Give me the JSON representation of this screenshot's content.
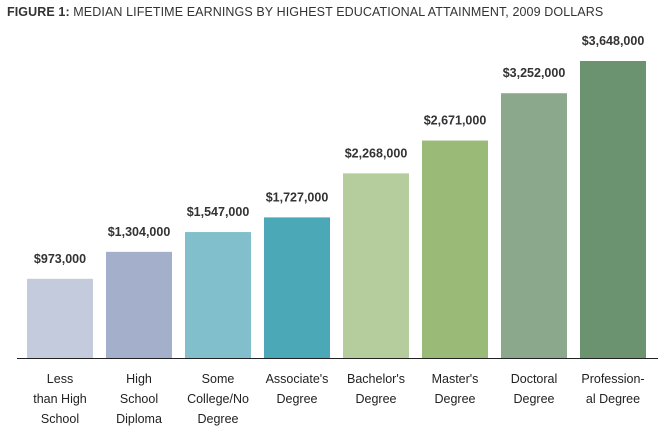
{
  "title": {
    "lead": "FIGURE 1:",
    "text": " MEDIAN LIFETIME EARNINGS BY HIGHEST EDUCATIONAL ATTAINMENT, 2009 DOLLARS"
  },
  "chart_data": {
    "type": "bar",
    "title": "FIGURE 1: MEDIAN LIFETIME EARNINGS BY HIGHEST EDUCATIONAL ATTAINMENT, 2009 DOLLARS",
    "categories": [
      [
        "Less",
        "than High",
        "School"
      ],
      [
        "High",
        "School",
        "Diploma"
      ],
      [
        "Some",
        "College/No",
        "Degree"
      ],
      [
        "Associate's",
        "Degree"
      ],
      [
        "Bachelor's",
        "Degree"
      ],
      [
        "Master's",
        "Degree"
      ],
      [
        "Doctoral",
        "Degree"
      ],
      [
        "Profession-",
        "al Degree"
      ]
    ],
    "values": [
      973000,
      1304000,
      1547000,
      1727000,
      2268000,
      2671000,
      3252000,
      3648000
    ],
    "value_labels": [
      "$973,000",
      "$1,304,000",
      "$1,547,000",
      "$1,727,000",
      "$2,268,000",
      "$2,671,000",
      "$3,252,000",
      "$3,648,000"
    ],
    "colors": [
      "#c4cbdc",
      "#a4b0cb",
      "#81bfcc",
      "#4aa8b7",
      "#b5cd9d",
      "#9aba78",
      "#8ba88c",
      "#6b9370"
    ],
    "axis_color": "#222222",
    "xlabel": "",
    "ylabel": "",
    "ylim": [
      0,
      3648000
    ],
    "grid": false,
    "legend": "none"
  }
}
